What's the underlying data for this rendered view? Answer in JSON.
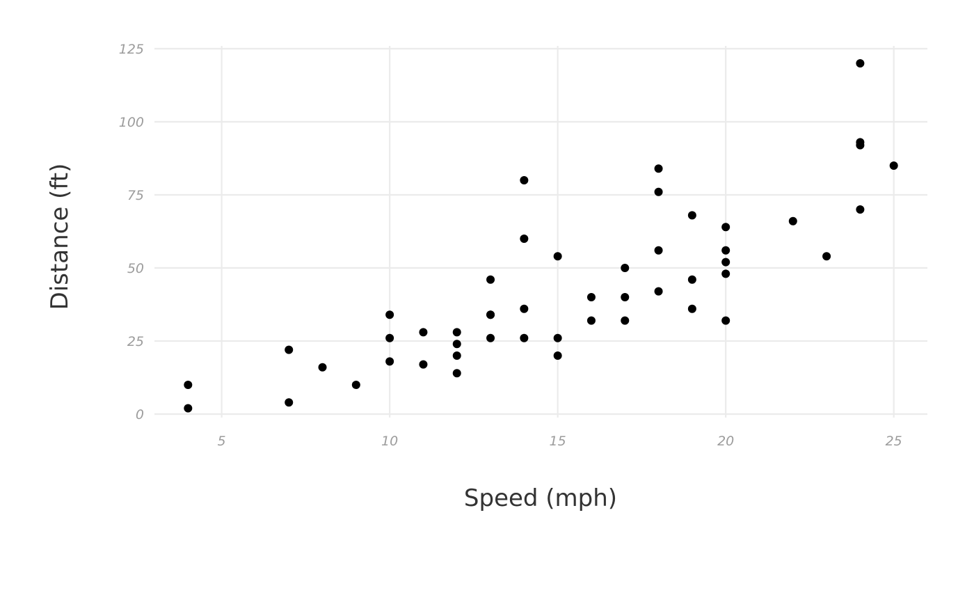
{
  "chart_data": {
    "type": "scatter",
    "title": "",
    "xlabel": "Speed (mph)",
    "ylabel": "Distance (ft)",
    "xlim": [
      3,
      26
    ],
    "ylim": [
      0,
      125
    ],
    "x_ticks": [
      5,
      10,
      15,
      20,
      25
    ],
    "y_ticks": [
      0,
      25,
      50,
      75,
      100,
      125
    ],
    "x_tick_labels": [
      "5",
      "10",
      "15",
      "20",
      "25"
    ],
    "y_tick_labels": [
      "0",
      "25",
      "50",
      "75",
      "100",
      "125"
    ],
    "grid": true,
    "point_color": "#000000",
    "points": [
      [
        4,
        2
      ],
      [
        4,
        10
      ],
      [
        7,
        4
      ],
      [
        7,
        22
      ],
      [
        8,
        16
      ],
      [
        9,
        10
      ],
      [
        10,
        18
      ],
      [
        10,
        26
      ],
      [
        10,
        34
      ],
      [
        11,
        17
      ],
      [
        11,
        28
      ],
      [
        12,
        14
      ],
      [
        12,
        20
      ],
      [
        12,
        24
      ],
      [
        12,
        28
      ],
      [
        13,
        26
      ],
      [
        13,
        34
      ],
      [
        13,
        34
      ],
      [
        13,
        46
      ],
      [
        14,
        26
      ],
      [
        14,
        36
      ],
      [
        14,
        60
      ],
      [
        14,
        80
      ],
      [
        15,
        20
      ],
      [
        15,
        26
      ],
      [
        15,
        54
      ],
      [
        16,
        32
      ],
      [
        16,
        40
      ],
      [
        17,
        32
      ],
      [
        17,
        40
      ],
      [
        17,
        50
      ],
      [
        18,
        42
      ],
      [
        18,
        56
      ],
      [
        18,
        76
      ],
      [
        18,
        84
      ],
      [
        19,
        36
      ],
      [
        19,
        46
      ],
      [
        19,
        68
      ],
      [
        20,
        32
      ],
      [
        20,
        48
      ],
      [
        20,
        52
      ],
      [
        20,
        56
      ],
      [
        20,
        64
      ],
      [
        22,
        66
      ],
      [
        23,
        54
      ],
      [
        24,
        70
      ],
      [
        24,
        92
      ],
      [
        24,
        93
      ],
      [
        24,
        120
      ],
      [
        25,
        85
      ]
    ]
  }
}
